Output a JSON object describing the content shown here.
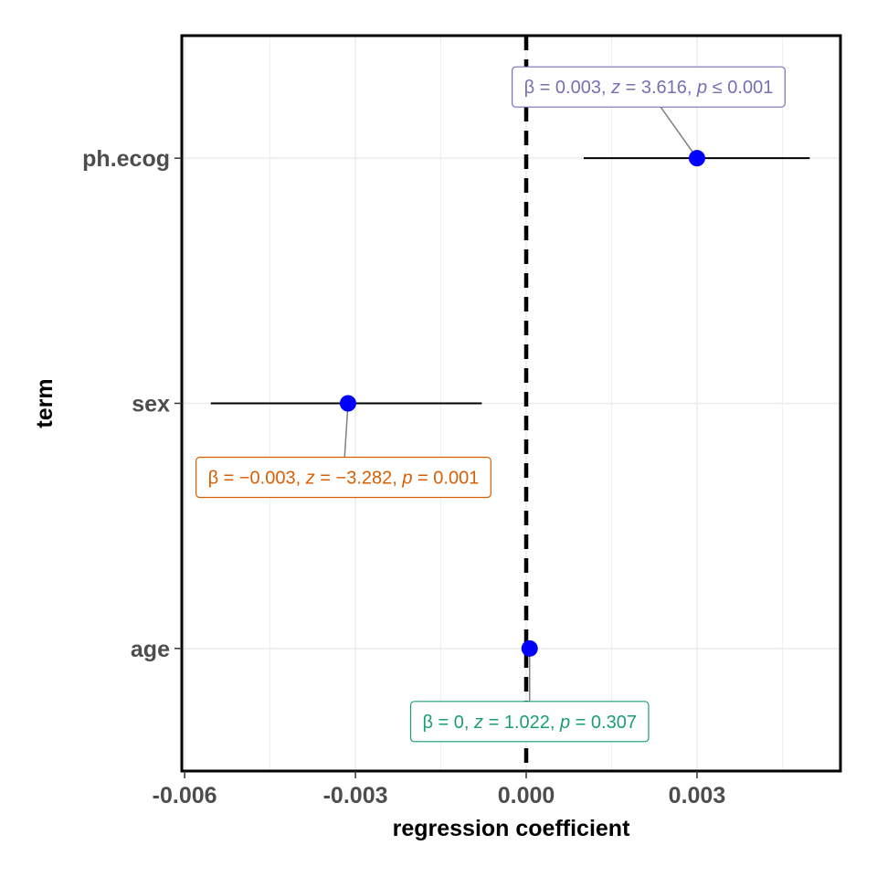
{
  "chart_data": {
    "type": "scatter",
    "subtype": "coefficient-plot",
    "xlabel": "regression coefficient",
    "ylabel": "term",
    "xlim": [
      -0.00605,
      0.00552
    ],
    "x_ticks": [
      -0.006,
      -0.003,
      0.0,
      0.003
    ],
    "x_tick_labels": [
      "-0.006",
      "-0.003",
      "0.000",
      "0.003"
    ],
    "reference_line": {
      "x": 0,
      "style": "dashed",
      "color": "#000000"
    },
    "grid": true,
    "point_color": "#0000ff",
    "terms": [
      {
        "label": "ph.ecog",
        "estimate": 0.003,
        "ci": [
          0.00101,
          0.00498
        ],
        "annotation": {
          "beta": "0.003",
          "z": "3.616",
          "p_op": "≤",
          "p": "0.001",
          "color": "#7570b3",
          "side": "above"
        }
      },
      {
        "label": "sex",
        "estimate": -0.00313,
        "ci": [
          -0.00554,
          -0.00078
        ],
        "annotation": {
          "beta": "−0.003",
          "z": "−3.282",
          "p_op": "=",
          "p": "0.001",
          "color": "#d95f02",
          "side": "below"
        }
      },
      {
        "label": "age",
        "estimate": 6e-05,
        "ci": [
          6e-05,
          6e-05
        ],
        "annotation": {
          "beta": "0",
          "z": "1.022",
          "p_op": "=",
          "p": "0.307",
          "color": "#1b9e77",
          "side": "below"
        }
      }
    ]
  }
}
